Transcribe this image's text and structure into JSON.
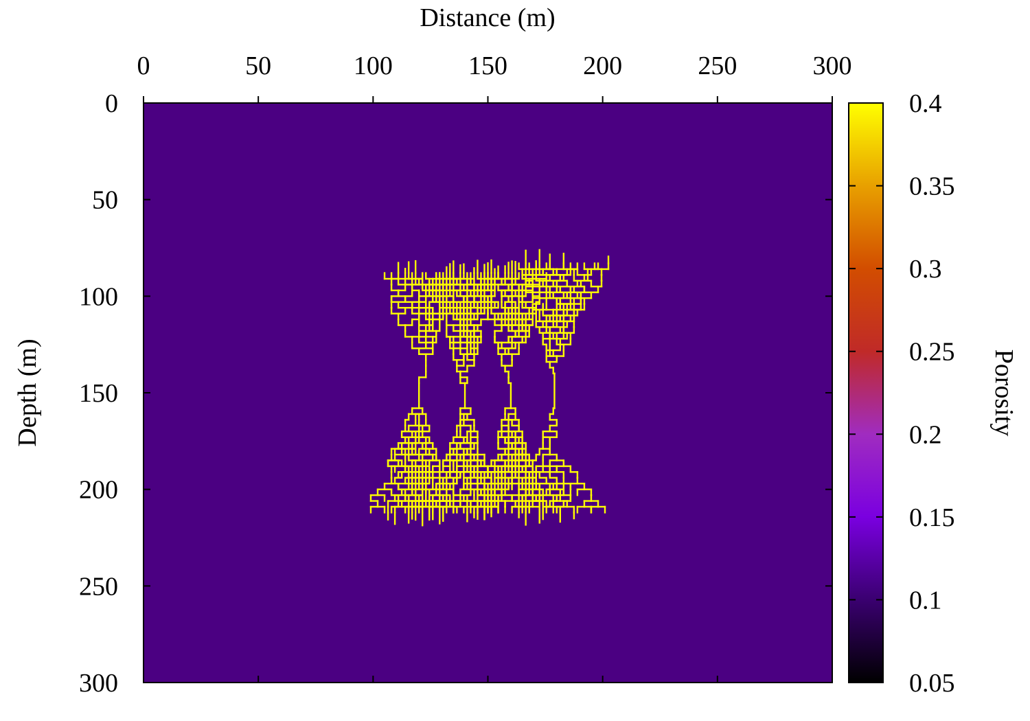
{
  "chart_data": {
    "type": "heatmap",
    "title": "",
    "xlabel": "Distance (m)",
    "ylabel": "Depth (m)",
    "xlim": [
      0,
      300
    ],
    "ylim": [
      0,
      300
    ],
    "y_inverted": true,
    "x_axis_position": "top",
    "x_ticks": [
      "0",
      "50",
      "100",
      "150",
      "200",
      "250",
      "300"
    ],
    "y_ticks": [
      "0",
      "50",
      "100",
      "150",
      "200",
      "250",
      "300"
    ],
    "colorbar": {
      "label": "Porosity",
      "range": [
        0.05,
        0.4
      ],
      "ticks": [
        "0.05",
        "0.1",
        "0.15",
        "0.2",
        "0.25",
        "0.3",
        "0.35",
        "0.4"
      ],
      "colormap": [
        "#000000",
        "#3a0070",
        "#7a00e0",
        "#a02cc0",
        "#c02a28",
        "#d24d00",
        "#e8a000",
        "#ffff00"
      ]
    },
    "background_value": 0.1,
    "background_color": "#4b0082",
    "fracture_value": 0.4,
    "fracture_color": "#ffff00",
    "fracture_network": {
      "description_units": "meters",
      "upper_fan_top": 80,
      "upper_fan_bottom": 145,
      "lower_fan_top": 155,
      "lower_fan_bottom": 225,
      "throats": [
        {
          "x": 120,
          "y_top": 145,
          "y_bottom": 158
        },
        {
          "x": 140,
          "y_top": 145,
          "y_bottom": 158
        },
        {
          "x": 160,
          "y_top": 145,
          "y_bottom": 158
        },
        {
          "x": 179,
          "y_top": 140,
          "y_bottom": 158
        }
      ],
      "x_extent": [
        102,
        196
      ]
    }
  }
}
